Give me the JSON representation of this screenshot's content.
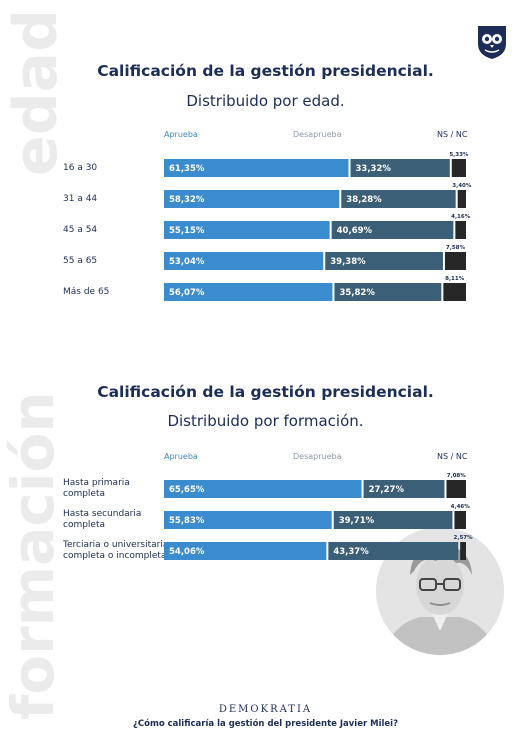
{
  "side_labels": [
    "edad",
    "formación"
  ],
  "footer": {
    "brand": "DEMOKRATIA",
    "question": "¿Cómo calificaría la gestión del presidente Javier Milei?"
  },
  "colors": {
    "aprueba": "#3a8cce",
    "desaprueba": "#3c5f78",
    "ns_nc": "#272727",
    "text": "#1c2d57"
  },
  "icons": [
    "owl-logo-icon",
    "portrait-image"
  ],
  "chart_data": [
    {
      "type": "bar",
      "stacked": true,
      "orientation": "horizontal",
      "title": "Calificación de la gestión presidencial.",
      "subtitle": "Distribuido por edad.",
      "legend": [
        "Aprueba",
        "Desaprueba",
        "NS / NC"
      ],
      "categories": [
        "16 a 30",
        "31 a 44",
        "45 a 54",
        "55 a 65",
        "Más de 65"
      ],
      "series": [
        {
          "name": "Aprueba",
          "values": [
            61.35,
            58.32,
            55.15,
            53.04,
            56.07
          ],
          "labels": [
            "61,35%",
            "58,32%",
            "55,15%",
            "53,04%",
            "56,07%"
          ]
        },
        {
          "name": "Desaprueba",
          "values": [
            33.32,
            38.28,
            40.69,
            39.38,
            35.82
          ],
          "labels": [
            "33,32%",
            "38,28%",
            "40,69%",
            "39,38%",
            "35,82%"
          ]
        },
        {
          "name": "NS / NC",
          "values": [
            5.33,
            3.4,
            4.16,
            7.58,
            8.11
          ],
          "labels": [
            "5,33%",
            "3,40%",
            "4,16%",
            "7,58%",
            "8,11%"
          ]
        }
      ]
    },
    {
      "type": "bar",
      "stacked": true,
      "orientation": "horizontal",
      "title": "Calificación de la gestión presidencial.",
      "subtitle": "Distribuido por formación.",
      "legend": [
        "Aprueba",
        "Desaprueba",
        "NS / NC"
      ],
      "categories": [
        [
          "Hasta primaria",
          "completa"
        ],
        [
          "Hasta secundaria",
          "completa"
        ],
        [
          "Terciaria o universitaria",
          "completa o incompleta"
        ]
      ],
      "series": [
        {
          "name": "Aprueba",
          "values": [
            65.65,
            55.83,
            54.06
          ],
          "labels": [
            "65,65%",
            "55,83%",
            "54,06%"
          ]
        },
        {
          "name": "Desaprueba",
          "values": [
            27.27,
            39.71,
            43.37
          ],
          "labels": [
            "27,27%",
            "39,71%",
            "43,37%"
          ]
        },
        {
          "name": "NS / NC",
          "values": [
            7.08,
            4.46,
            2.57
          ],
          "labels": [
            "7,08%",
            "4,46%",
            "2,57%"
          ]
        }
      ]
    }
  ]
}
